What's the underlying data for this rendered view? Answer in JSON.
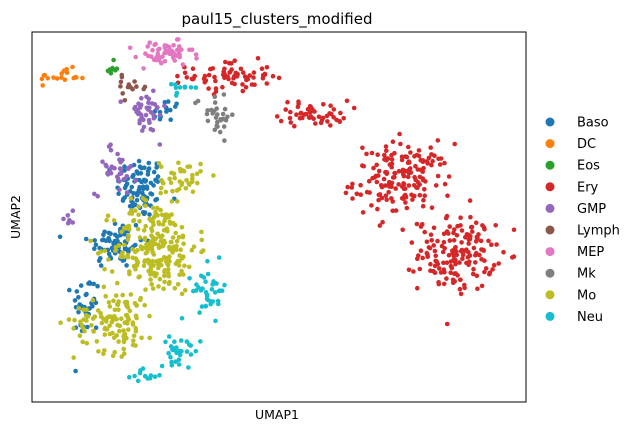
{
  "chart_data": {
    "type": "scatter",
    "title": "paul15_clusters_modified",
    "xlabel": "UMAP1",
    "ylabel": "UMAP2",
    "xticks": [],
    "yticks": [],
    "xlim": [
      0,
      100
    ],
    "ylim": [
      0,
      100
    ],
    "grid": false,
    "legend_position": "right",
    "series": [
      {
        "name": "Baso",
        "color": "#1f77b4",
        "clusters": [
          {
            "center": [
              22,
              58
            ],
            "spread": [
              3.5,
              6
            ],
            "n": 90
          },
          {
            "center": [
              17,
              43
            ],
            "spread": [
              4,
              5
            ],
            "n": 70
          },
          {
            "center": [
              11,
              26
            ],
            "spread": [
              2,
              6
            ],
            "n": 35
          },
          {
            "center": [
              27,
              78
            ],
            "spread": [
              2,
              3
            ],
            "n": 15
          }
        ]
      },
      {
        "name": "DC",
        "color": "#ff7f0e",
        "clusters": [
          {
            "center": [
              6,
              88
            ],
            "spread": [
              3.5,
              1.5
            ],
            "n": 18
          }
        ]
      },
      {
        "name": "Eos",
        "color": "#2ca02c",
        "clusters": [
          {
            "center": [
              16,
              90
            ],
            "spread": [
              1.2,
              1.5
            ],
            "n": 8
          }
        ]
      },
      {
        "name": "Ery",
        "color": "#d62728",
        "clusters": [
          {
            "center": [
              40,
              88
            ],
            "spread": [
              6,
              3
            ],
            "n": 70
          },
          {
            "center": [
              57,
              78
            ],
            "spread": [
              5,
              2.5
            ],
            "n": 50
          },
          {
            "center": [
              75,
              60
            ],
            "spread": [
              7,
              7
            ],
            "n": 170
          },
          {
            "center": [
              86,
              40
            ],
            "spread": [
              5.5,
              7
            ],
            "n": 160
          }
        ]
      },
      {
        "name": "GMP",
        "color": "#9467bd",
        "clusters": [
          {
            "center": [
              23,
              78
            ],
            "spread": [
              3,
              4
            ],
            "n": 40
          },
          {
            "center": [
              17,
              63
            ],
            "spread": [
              3,
              5
            ],
            "n": 35
          },
          {
            "center": [
              8,
              50
            ],
            "spread": [
              1,
              1.5
            ],
            "n": 6
          }
        ]
      },
      {
        "name": "Lymph",
        "color": "#8c564b",
        "clusters": [
          {
            "center": [
              20,
              85
            ],
            "spread": [
              2.5,
              2
            ],
            "n": 14
          }
        ]
      },
      {
        "name": "MEP",
        "color": "#e377c2",
        "clusters": [
          {
            "center": [
              27,
              94
            ],
            "spread": [
              4,
              2.5
            ],
            "n": 55
          }
        ]
      },
      {
        "name": "Mk",
        "color": "#7f7f7f",
        "clusters": [
          {
            "center": [
              37,
              78
            ],
            "spread": [
              3,
              4
            ],
            "n": 30
          }
        ]
      },
      {
        "name": "Mo",
        "color": "#bcbd22",
        "clusters": [
          {
            "center": [
              25,
              42
            ],
            "spread": [
              6,
              9
            ],
            "n": 230
          },
          {
            "center": [
              17,
              22
            ],
            "spread": [
              6,
              6
            ],
            "n": 120
          },
          {
            "center": [
              30,
              60
            ],
            "spread": [
              3,
              4
            ],
            "n": 40
          }
        ]
      },
      {
        "name": "Neu",
        "color": "#17becf",
        "clusters": [
          {
            "center": [
              36,
              30
            ],
            "spread": [
              2.5,
              5
            ],
            "n": 40
          },
          {
            "center": [
              30,
              14
            ],
            "spread": [
              3,
              2.5
            ],
            "n": 30
          },
          {
            "center": [
              22,
              7
            ],
            "spread": [
              3,
              1.2
            ],
            "n": 12
          },
          {
            "center": [
              30,
              85
            ],
            "spread": [
              2,
              2
            ],
            "n": 10
          }
        ]
      }
    ]
  }
}
